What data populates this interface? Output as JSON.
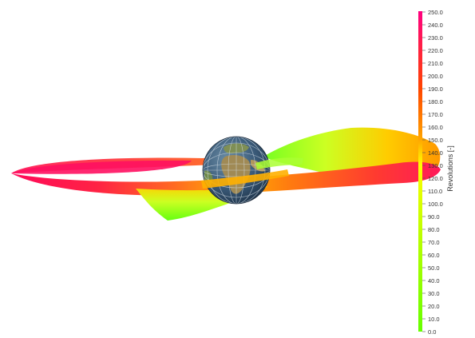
{
  "colorbar": {
    "label": "Revolutions [-]",
    "min": 0,
    "max": 250,
    "ticks": [
      "250.0",
      "240.0",
      "230.0",
      "220.0",
      "210.0",
      "200.0",
      "190.0",
      "180.0",
      "170.0",
      "160.0",
      "150.0",
      "140.0",
      "130.0",
      "120.0",
      "110.0",
      "100.0",
      "90.0",
      "80.0",
      "70.0",
      "60.0",
      "50.0",
      "40.0",
      "30.0",
      "20.0",
      "10.0",
      "0.0"
    ],
    "colors": {
      "c0": "#66ff00",
      "c100": "#d8ff00",
      "c130": "#ffff00",
      "c150": "#ffa500",
      "c190": "#ff4400",
      "c250": "#ff0080"
    }
  }
}
